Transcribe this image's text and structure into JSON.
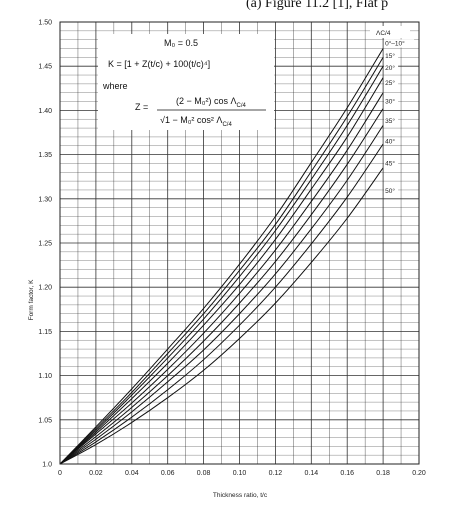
{
  "caption": "(a) Figure 11.2 [1], Flat p",
  "chart_data": {
    "type": "line",
    "xlabel": "Thickness ratio, t/c",
    "ylabel": "Form factor, K",
    "xlim": [
      0,
      0.2
    ],
    "ylim": [
      1.0,
      1.5
    ],
    "x_ticks": [
      "0",
      "0.02",
      "0.04",
      "0.06",
      "0.08",
      "0.10",
      "0.12",
      "0.14",
      "0.16",
      "0.18",
      "0.20"
    ],
    "y_ticks": [
      "1.0",
      "1.05",
      "1.10",
      "1.15",
      "1.20",
      "1.25",
      "1.30",
      "1.35",
      "1.40",
      "1.45",
      "1.50"
    ],
    "grid": true,
    "annotation": {
      "mach": "M₀ = 0.5",
      "k_formula": "K = [1 + Z(t/c) + 100(t/c)⁴]",
      "where": "where",
      "z_lhs": "Z =",
      "z_num": "(2 − M₀²) cos Λ",
      "z_num_sub": "C/4",
      "z_den": "√1 − M₀² cos² Λ",
      "z_den_sub": "C/4"
    },
    "legend_title": "ΛC/4",
    "series": [
      {
        "name": "0°–10°",
        "x": [
          0,
          0.02,
          0.04,
          0.06,
          0.08,
          0.1,
          0.12,
          0.14,
          0.16,
          0.18
        ],
        "y": [
          1.0,
          1.042,
          1.085,
          1.13,
          1.176,
          1.226,
          1.28,
          1.341,
          1.403,
          1.47
        ]
      },
      {
        "name": "15°",
        "x": [
          0,
          0.02,
          0.04,
          0.06,
          0.08,
          0.1,
          0.12,
          0.14,
          0.16,
          0.18
        ],
        "y": [
          1.0,
          1.04,
          1.081,
          1.125,
          1.17,
          1.219,
          1.271,
          1.331,
          1.393,
          1.46
        ]
      },
      {
        "name": "20°",
        "x": [
          0,
          0.02,
          0.04,
          0.06,
          0.08,
          0.1,
          0.12,
          0.14,
          0.16,
          0.18
        ],
        "y": [
          1.0,
          1.038,
          1.078,
          1.12,
          1.164,
          1.212,
          1.264,
          1.322,
          1.383,
          1.45
        ]
      },
      {
        "name": "25°",
        "x": [
          0,
          0.02,
          0.04,
          0.06,
          0.08,
          0.1,
          0.12,
          0.14,
          0.16,
          0.18
        ],
        "y": [
          1.0,
          1.036,
          1.074,
          1.114,
          1.157,
          1.203,
          1.254,
          1.311,
          1.37,
          1.437
        ]
      },
      {
        "name": "30°",
        "x": [
          0,
          0.02,
          0.04,
          0.06,
          0.08,
          0.1,
          0.12,
          0.14,
          0.16,
          0.18
        ],
        "y": [
          1.0,
          1.034,
          1.069,
          1.107,
          1.148,
          1.193,
          1.242,
          1.297,
          1.355,
          1.42
        ]
      },
      {
        "name": "35°",
        "x": [
          0,
          0.02,
          0.04,
          0.06,
          0.08,
          0.1,
          0.12,
          0.14,
          0.16,
          0.18
        ],
        "y": [
          1.0,
          1.031,
          1.064,
          1.1,
          1.139,
          1.182,
          1.229,
          1.282,
          1.339,
          1.402
        ]
      },
      {
        "name": "40°",
        "x": [
          0,
          0.02,
          0.04,
          0.06,
          0.08,
          0.1,
          0.12,
          0.14,
          0.16,
          0.18
        ],
        "y": [
          1.0,
          1.028,
          1.059,
          1.093,
          1.129,
          1.17,
          1.215,
          1.266,
          1.321,
          1.383
        ]
      },
      {
        "name": "45°",
        "x": [
          0,
          0.02,
          0.04,
          0.06,
          0.08,
          0.1,
          0.12,
          0.14,
          0.16,
          0.18
        ],
        "y": [
          1.0,
          1.025,
          1.053,
          1.084,
          1.118,
          1.157,
          1.2,
          1.249,
          1.302,
          1.362
        ]
      },
      {
        "name": "50°",
        "x": [
          0,
          0.02,
          0.04,
          0.06,
          0.08,
          0.1,
          0.12,
          0.14,
          0.16,
          0.18
        ],
        "y": [
          1.0,
          1.022,
          1.047,
          1.075,
          1.106,
          1.142,
          1.182,
          1.228,
          1.278,
          1.335
        ]
      }
    ]
  }
}
